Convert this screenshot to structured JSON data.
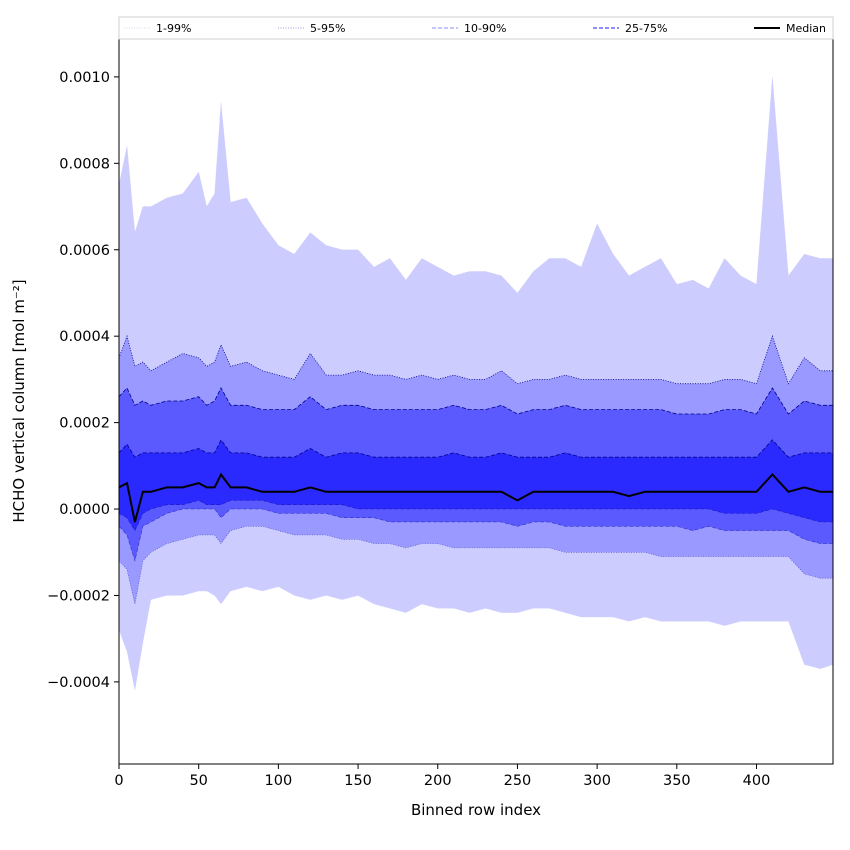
{
  "chart_data": {
    "type": "area",
    "title": "",
    "xlabel": "Binned row index",
    "ylabel": "HCHO vertical column [mol m⁻²]",
    "xlim": [
      0,
      448
    ],
    "ylim": [
      -0.00059,
      0.00109
    ],
    "xticks": [
      0,
      50,
      100,
      150,
      200,
      250,
      300,
      350,
      400
    ],
    "xtick_labels": [
      "0",
      "50",
      "100",
      "150",
      "200",
      "250",
      "300",
      "350",
      "400"
    ],
    "yticks": [
      -0.0004,
      -0.0002,
      0.0,
      0.0002,
      0.0004,
      0.0006,
      0.0008,
      0.001
    ],
    "ytick_labels": [
      "−0.0004",
      "−0.0002",
      "0.0000",
      "0.0002",
      "0.0004",
      "0.0006",
      "0.0008",
      "0.0010"
    ],
    "grid": false,
    "legend_position": "top",
    "colors": {
      "band_1_99": "#ccccff",
      "band_5_95": "#9999ff",
      "band_10_90": "#5a5aff",
      "band_25_75": "#2a2aff",
      "percentile_line": "#00008b",
      "median": "#000000"
    },
    "x": [
      0,
      5,
      10,
      15,
      20,
      30,
      40,
      50,
      55,
      60,
      64,
      70,
      80,
      90,
      100,
      110,
      120,
      130,
      140,
      150,
      160,
      170,
      180,
      190,
      200,
      210,
      220,
      230,
      240,
      250,
      260,
      270,
      280,
      290,
      300,
      310,
      320,
      330,
      340,
      350,
      360,
      370,
      380,
      390,
      400,
      410,
      420,
      430,
      440,
      448
    ],
    "series": [
      {
        "name": "1-99%",
        "style": "dotted",
        "kind": "band",
        "low": [
          -0.00028,
          -0.00033,
          -0.00042,
          -0.00031,
          -0.00021,
          -0.0002,
          -0.0002,
          -0.00019,
          -0.00019,
          -0.0002,
          -0.00022,
          -0.00019,
          -0.00018,
          -0.00019,
          -0.00018,
          -0.0002,
          -0.00021,
          -0.0002,
          -0.00021,
          -0.0002,
          -0.00022,
          -0.00023,
          -0.00024,
          -0.00022,
          -0.00023,
          -0.00023,
          -0.00024,
          -0.00023,
          -0.00024,
          -0.00024,
          -0.00023,
          -0.00023,
          -0.00024,
          -0.00025,
          -0.00025,
          -0.00025,
          -0.00026,
          -0.00025,
          -0.00026,
          -0.00026,
          -0.00026,
          -0.00026,
          -0.00027,
          -0.00026,
          -0.00026,
          -0.00026,
          -0.00026,
          -0.00036,
          -0.00037,
          -0.00036
        ],
        "high": [
          0.00075,
          0.00084,
          0.00064,
          0.0007,
          0.0007,
          0.00072,
          0.00073,
          0.00078,
          0.0007,
          0.00073,
          0.00094,
          0.00071,
          0.00072,
          0.00066,
          0.00061,
          0.00059,
          0.00064,
          0.00061,
          0.0006,
          0.0006,
          0.00056,
          0.00058,
          0.00053,
          0.00058,
          0.00056,
          0.00054,
          0.00055,
          0.00055,
          0.00054,
          0.0005,
          0.00055,
          0.00058,
          0.00058,
          0.00056,
          0.00066,
          0.00059,
          0.00054,
          0.00056,
          0.00058,
          0.00052,
          0.00053,
          0.00051,
          0.00058,
          0.00054,
          0.00052,
          0.001,
          0.00054,
          0.00059,
          0.00058,
          0.00058
        ]
      },
      {
        "name": "5-95%",
        "style": "dotted",
        "kind": "band",
        "low": [
          -0.00012,
          -0.00014,
          -0.00022,
          -0.00012,
          -0.0001,
          -8e-05,
          -7e-05,
          -6e-05,
          -6e-05,
          -6e-05,
          -8e-05,
          -5e-05,
          -4e-05,
          -4e-05,
          -5e-05,
          -6e-05,
          -6e-05,
          -6e-05,
          -7e-05,
          -7e-05,
          -8e-05,
          -8e-05,
          -9e-05,
          -8e-05,
          -8e-05,
          -9e-05,
          -9e-05,
          -9e-05,
          -9e-05,
          -9e-05,
          -9e-05,
          -9e-05,
          -0.0001,
          -0.0001,
          -0.0001,
          -0.0001,
          -0.0001,
          -0.0001,
          -0.00011,
          -0.00011,
          -0.00011,
          -0.00011,
          -0.00011,
          -0.00011,
          -0.00011,
          -0.00011,
          -0.00011,
          -0.00015,
          -0.00016,
          -0.00016
        ],
        "high": [
          0.00035,
          0.0004,
          0.00033,
          0.00034,
          0.00032,
          0.00034,
          0.00036,
          0.00035,
          0.00033,
          0.00034,
          0.00038,
          0.00033,
          0.00034,
          0.00032,
          0.00031,
          0.0003,
          0.00036,
          0.00031,
          0.00031,
          0.00032,
          0.00031,
          0.00031,
          0.0003,
          0.00031,
          0.0003,
          0.00031,
          0.0003,
          0.0003,
          0.00032,
          0.00029,
          0.0003,
          0.0003,
          0.00031,
          0.0003,
          0.0003,
          0.0003,
          0.0003,
          0.0003,
          0.0003,
          0.00029,
          0.00029,
          0.00029,
          0.0003,
          0.0003,
          0.00029,
          0.0004,
          0.00029,
          0.00035,
          0.00032,
          0.00032
        ]
      },
      {
        "name": "10-90%",
        "style": "dashed",
        "kind": "band",
        "low": [
          -4e-05,
          -6e-05,
          -0.00012,
          -4e-05,
          -3e-05,
          -1e-05,
          0.0,
          0.0,
          0.0,
          0.0,
          -2e-05,
          0.0,
          0.0,
          0.0,
          -1e-05,
          -1e-05,
          -1e-05,
          -1e-05,
          -2e-05,
          -2e-05,
          -2e-05,
          -3e-05,
          -3e-05,
          -3e-05,
          -3e-05,
          -3e-05,
          -3e-05,
          -3e-05,
          -3e-05,
          -4e-05,
          -3e-05,
          -3e-05,
          -4e-05,
          -4e-05,
          -4e-05,
          -4e-05,
          -4e-05,
          -4e-05,
          -4e-05,
          -4e-05,
          -5e-05,
          -4e-05,
          -5e-05,
          -5e-05,
          -5e-05,
          -5e-05,
          -5e-05,
          -7e-05,
          -8e-05,
          -8e-05
        ],
        "high": [
          0.00026,
          0.00028,
          0.00024,
          0.00025,
          0.00024,
          0.00025,
          0.00025,
          0.00026,
          0.00024,
          0.00025,
          0.00028,
          0.00024,
          0.00024,
          0.00023,
          0.00023,
          0.00023,
          0.00026,
          0.00023,
          0.00024,
          0.00024,
          0.00023,
          0.00023,
          0.00023,
          0.00023,
          0.00023,
          0.00024,
          0.00023,
          0.00023,
          0.00024,
          0.00022,
          0.00023,
          0.00023,
          0.00024,
          0.00023,
          0.00023,
          0.00023,
          0.00023,
          0.00023,
          0.00023,
          0.00022,
          0.00022,
          0.00022,
          0.00023,
          0.00023,
          0.00022,
          0.00028,
          0.00022,
          0.00025,
          0.00024,
          0.00024
        ]
      },
      {
        "name": "25-75%",
        "style": "dashed",
        "kind": "band",
        "low": [
          -1e-05,
          -2e-05,
          -5e-05,
          -1e-05,
          0.0,
          1e-05,
          1e-05,
          2e-05,
          1e-05,
          1e-05,
          1e-05,
          2e-05,
          2e-05,
          2e-05,
          1e-05,
          1e-05,
          1e-05,
          1e-05,
          1e-05,
          0.0,
          0.0,
          0.0,
          0.0,
          0.0,
          0.0,
          0.0,
          0.0,
          0.0,
          0.0,
          0.0,
          0.0,
          0.0,
          0.0,
          0.0,
          0.0,
          0.0,
          0.0,
          0.0,
          0.0,
          0.0,
          0.0,
          0.0,
          -1e-05,
          -1e-05,
          -1e-05,
          0.0,
          -1e-05,
          -2e-05,
          -3e-05,
          -3e-05
        ],
        "high": [
          0.00013,
          0.00015,
          0.00012,
          0.00013,
          0.00013,
          0.00013,
          0.00013,
          0.00014,
          0.00013,
          0.00013,
          0.00016,
          0.00013,
          0.00013,
          0.00012,
          0.00012,
          0.00012,
          0.00014,
          0.00012,
          0.00013,
          0.00013,
          0.00012,
          0.00012,
          0.00012,
          0.00012,
          0.00012,
          0.00013,
          0.00012,
          0.00012,
          0.00013,
          0.00012,
          0.00012,
          0.00012,
          0.00013,
          0.00012,
          0.00012,
          0.00012,
          0.00012,
          0.00012,
          0.00012,
          0.00012,
          0.00012,
          0.00012,
          0.00012,
          0.00012,
          0.00012,
          0.00016,
          0.00012,
          0.00013,
          0.00013,
          0.00013
        ]
      },
      {
        "name": "Median",
        "style": "solid",
        "kind": "line",
        "values": [
          5e-05,
          6e-05,
          -3e-05,
          4e-05,
          4e-05,
          5e-05,
          5e-05,
          6e-05,
          5e-05,
          5e-05,
          8e-05,
          5e-05,
          5e-05,
          4e-05,
          4e-05,
          4e-05,
          5e-05,
          4e-05,
          4e-05,
          4e-05,
          4e-05,
          4e-05,
          4e-05,
          4e-05,
          4e-05,
          4e-05,
          4e-05,
          4e-05,
          4e-05,
          2e-05,
          4e-05,
          4e-05,
          4e-05,
          4e-05,
          4e-05,
          4e-05,
          3e-05,
          4e-05,
          4e-05,
          4e-05,
          4e-05,
          4e-05,
          4e-05,
          4e-05,
          4e-05,
          8e-05,
          4e-05,
          5e-05,
          4e-05,
          4e-05
        ]
      }
    ]
  }
}
